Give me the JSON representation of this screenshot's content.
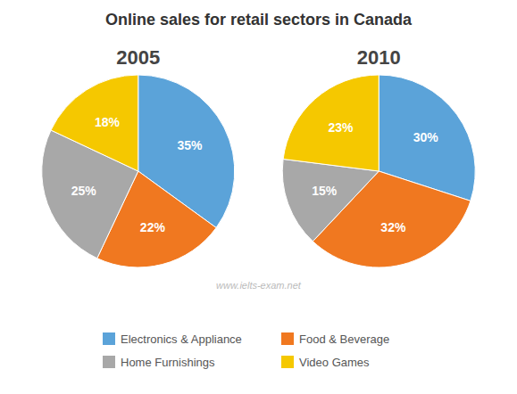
{
  "chart_data": {
    "type": "pie",
    "title": "Online sales for retail sectors in Canada",
    "categories": [
      "Electronics & Appliance",
      "Food & Beverage",
      "Home Furnishings",
      "Video Games"
    ],
    "colors": [
      "#5BA3D9",
      "#F07820",
      "#A8A8A8",
      "#F5C800"
    ],
    "series": [
      {
        "name": "2005",
        "values": [
          35,
          22,
          25,
          18
        ],
        "value_labels": [
          "35%",
          "22%",
          "25%",
          "18%"
        ]
      },
      {
        "name": "2010",
        "values": [
          30,
          32,
          15,
          23
        ],
        "value_labels": [
          "30%",
          "32%",
          "15%",
          "23%"
        ]
      }
    ],
    "data_labels": true,
    "legend": "bottom",
    "annotations": [
      "www.ielts-exam.net"
    ]
  }
}
